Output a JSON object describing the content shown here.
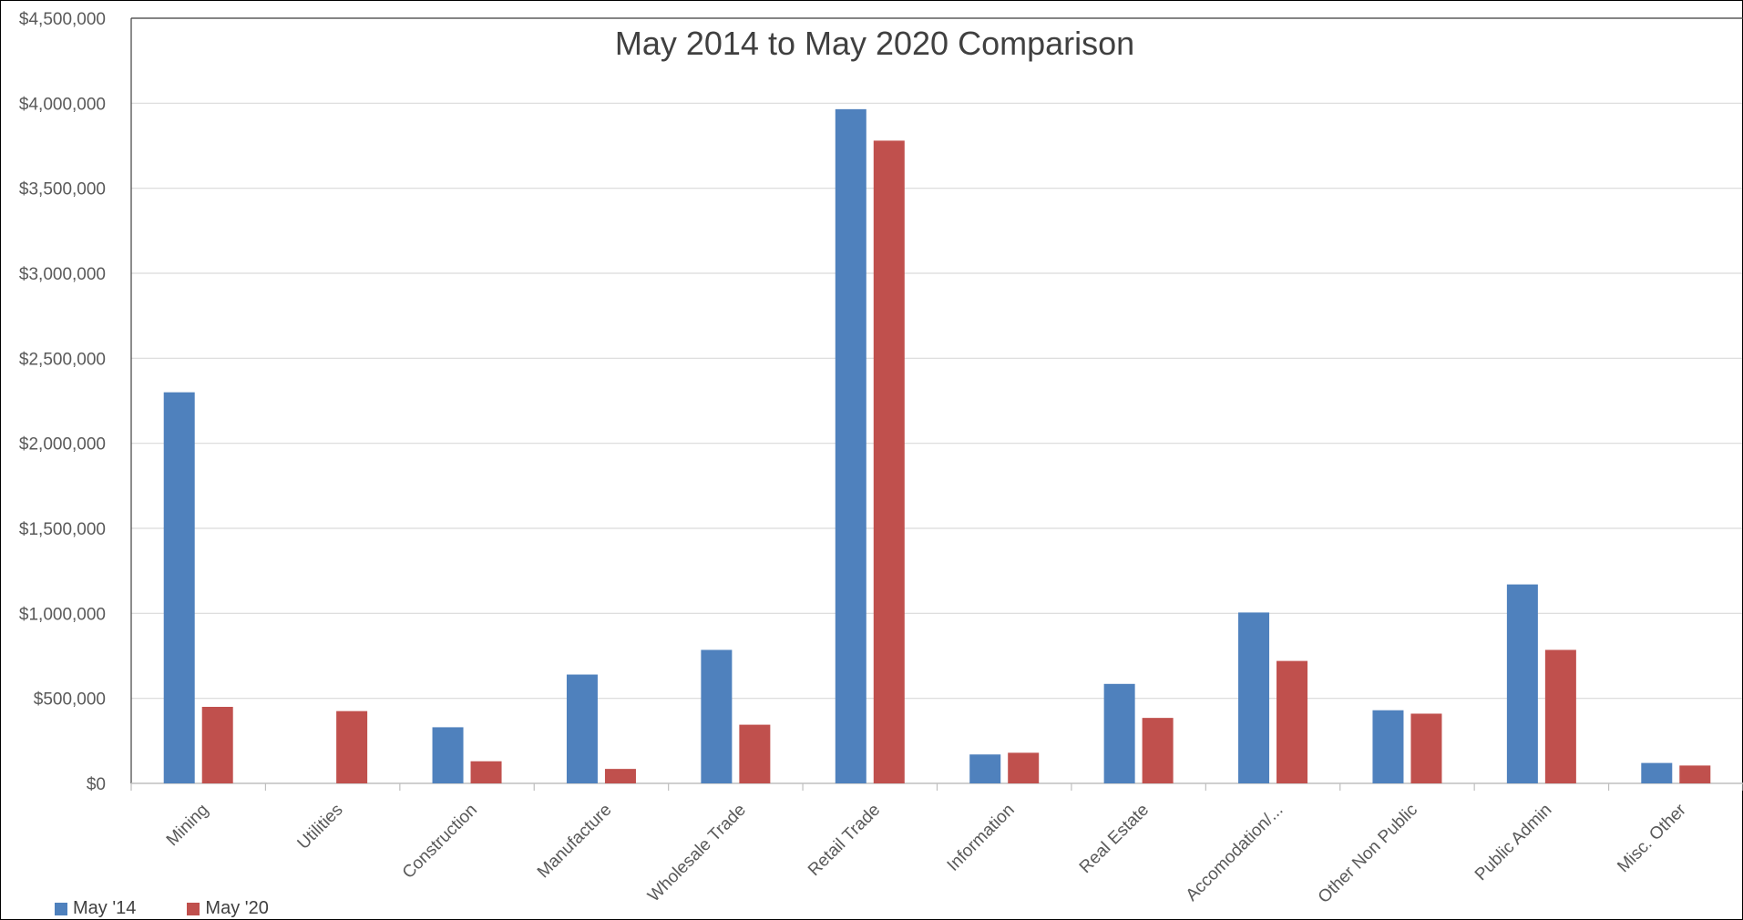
{
  "chart_data": {
    "type": "bar",
    "title": "May 2014 to May 2020 Comparison",
    "xlabel": "",
    "ylabel": "",
    "ylim": [
      0,
      4500000
    ],
    "yticks": [
      {
        "value": 0,
        "label": "$0"
      },
      {
        "value": 500000,
        "label": "$500,000"
      },
      {
        "value": 1000000,
        "label": "$1,000,000"
      },
      {
        "value": 1500000,
        "label": "$1,500,000"
      },
      {
        "value": 2000000,
        "label": "$2,000,000"
      },
      {
        "value": 2500000,
        "label": "$2,500,000"
      },
      {
        "value": 3000000,
        "label": "$3,000,000"
      },
      {
        "value": 3500000,
        "label": "$3,500,000"
      },
      {
        "value": 4000000,
        "label": "$4,000,000"
      },
      {
        "value": 4500000,
        "label": "$4,500,000"
      }
    ],
    "categories": [
      "Mining",
      "Utilities",
      "Construction",
      "Manufacture",
      "Wholesale Trade",
      "Retail Trade",
      "Information",
      "Real Estate",
      "Accomodation/...",
      "Other Non Public",
      "Public Admin",
      "Misc. Other"
    ],
    "series": [
      {
        "name": "May '14",
        "color": "#4F81BD",
        "values": [
          2300000,
          0,
          330000,
          640000,
          785000,
          3965000,
          170000,
          585000,
          1005000,
          430000,
          1170000,
          120000
        ]
      },
      {
        "name": "May '20",
        "color": "#C0504D",
        "values": [
          450000,
          425000,
          130000,
          85000,
          345000,
          3780000,
          180000,
          385000,
          720000,
          410000,
          785000,
          105000
        ]
      }
    ],
    "grid": true,
    "legend_position": "bottom-left"
  }
}
